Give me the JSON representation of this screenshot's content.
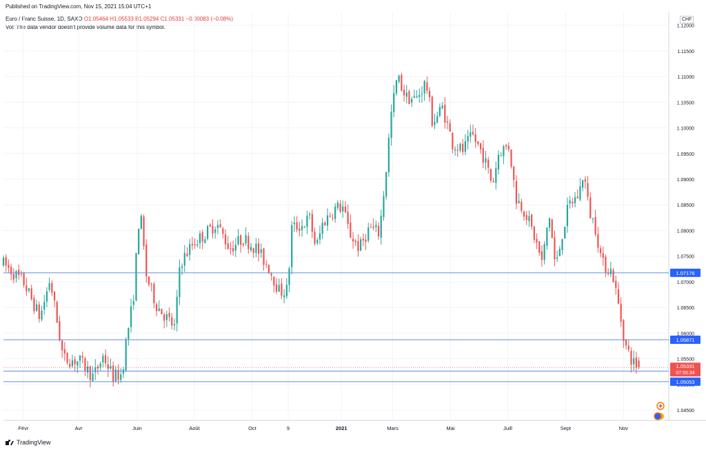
{
  "header": {
    "published": "Published on TradingView.com, Nov 15, 2021 15:04 UTC+1"
  },
  "legend": {
    "symbol": "Euro / Franc Suisse, 1D, SAXO",
    "ohlc": "O1.05464 H1.05533 B1.05294 C1.05331 −0.00083 (−0.08%)",
    "volume_note": "Vol: The data vendor doesn't provide volume data for this symbol."
  },
  "currency_badge": "CHF",
  "footer": {
    "logo_text": "TradingView"
  },
  "colors": {
    "up": "#26a69a",
    "down": "#ef5350",
    "hline": "#5b8ee6",
    "price_badge": "#ef5350",
    "label_badge": "#2962ff",
    "grid": "#f0f3fa"
  },
  "chart_data": {
    "type": "candlestick",
    "y_range": [
      1.043,
      1.1225
    ],
    "y_ticks": [
      "1.12000",
      "1.11500",
      "1.11000",
      "1.10500",
      "1.10000",
      "1.09500",
      "1.09000",
      "1.08500",
      "1.08000",
      "1.07500",
      "1.07000",
      "1.06500",
      "1.06000",
      "1.05500",
      "1.05000",
      "1.04500"
    ],
    "y_tick_values": [
      1.12,
      1.115,
      1.11,
      1.105,
      1.1,
      1.095,
      1.09,
      1.085,
      1.08,
      1.075,
      1.07,
      1.065,
      1.06,
      1.055,
      1.05,
      1.045
    ],
    "x_ticks": [
      {
        "label": "Févr",
        "x": 0.03
      },
      {
        "label": "Avr",
        "x": 0.113
      },
      {
        "label": "Juin",
        "x": 0.201
      },
      {
        "label": "Août",
        "x": 0.287
      },
      {
        "label": "Oct",
        "x": 0.374
      },
      {
        "label": "9",
        "x": 0.428
      },
      {
        "label": "2021",
        "x": 0.508
      },
      {
        "label": "Mars",
        "x": 0.585
      },
      {
        "label": "Mai",
        "x": 0.672
      },
      {
        "label": "Juill",
        "x": 0.758
      },
      {
        "label": "Sept",
        "x": 0.845
      },
      {
        "label": "Nov",
        "x": 0.932
      }
    ],
    "anchors": [
      [
        0.0,
        1.0735
      ],
      [
        0.03,
        1.07
      ],
      [
        0.055,
        1.063
      ],
      [
        0.07,
        1.0705
      ],
      [
        0.09,
        1.055
      ],
      [
        0.115,
        1.0545
      ],
      [
        0.135,
        1.0515
      ],
      [
        0.15,
        1.0555
      ],
      [
        0.165,
        1.0515
      ],
      [
        0.178,
        1.052
      ],
      [
        0.185,
        1.059
      ],
      [
        0.195,
        1.0665
      ],
      [
        0.205,
        1.0845
      ],
      [
        0.215,
        1.071
      ],
      [
        0.23,
        1.0655
      ],
      [
        0.245,
        1.063
      ],
      [
        0.258,
        1.061
      ],
      [
        0.265,
        1.0735
      ],
      [
        0.285,
        1.0775
      ],
      [
        0.305,
        1.0795
      ],
      [
        0.32,
        1.0815
      ],
      [
        0.34,
        1.0765
      ],
      [
        0.36,
        1.0785
      ],
      [
        0.38,
        1.0765
      ],
      [
        0.4,
        1.0725
      ],
      [
        0.415,
        1.068
      ],
      [
        0.428,
        1.0685
      ],
      [
        0.432,
        1.0805
      ],
      [
        0.45,
        1.081
      ],
      [
        0.46,
        1.0825
      ],
      [
        0.47,
        1.0765
      ],
      [
        0.48,
        1.0815
      ],
      [
        0.5,
        1.0845
      ],
      [
        0.51,
        1.0845
      ],
      [
        0.52,
        1.0795
      ],
      [
        0.535,
        1.0765
      ],
      [
        0.55,
        1.0805
      ],
      [
        0.565,
        1.0795
      ],
      [
        0.575,
        1.0915
      ],
      [
        0.582,
        1.102
      ],
      [
        0.592,
        1.11
      ],
      [
        0.605,
        1.106
      ],
      [
        0.62,
        1.1055
      ],
      [
        0.635,
        1.109
      ],
      [
        0.645,
        1.101
      ],
      [
        0.66,
        1.104
      ],
      [
        0.675,
        1.097
      ],
      [
        0.69,
        1.0955
      ],
      [
        0.705,
        1.0985
      ],
      [
        0.72,
        1.095
      ],
      [
        0.735,
        1.089
      ],
      [
        0.745,
        1.0955
      ],
      [
        0.76,
        1.0965
      ],
      [
        0.77,
        1.0865
      ],
      [
        0.785,
        1.0835
      ],
      [
        0.8,
        1.078
      ],
      [
        0.81,
        1.0735
      ],
      [
        0.82,
        1.0835
      ],
      [
        0.83,
        1.0725
      ],
      [
        0.84,
        1.0795
      ],
      [
        0.85,
        1.085
      ],
      [
        0.865,
        1.087
      ],
      [
        0.872,
        1.0915
      ],
      [
        0.88,
        1.084
      ],
      [
        0.89,
        1.0805
      ],
      [
        0.9,
        1.0735
      ],
      [
        0.915,
        1.072
      ],
      [
        0.925,
        1.065
      ],
      [
        0.935,
        1.0575
      ],
      [
        0.945,
        1.0545
      ],
      [
        0.955,
        1.0533
      ]
    ],
    "last_bar": {
      "open": 1.05464,
      "high": 1.05533,
      "low": 1.05294,
      "close": 1.05331
    },
    "horizontal_levels": [
      {
        "label": "1.07176",
        "value": 1.07176
      },
      {
        "label": "1.05871",
        "value": 1.05871
      },
      {
        "label": "1.05261",
        "value": 1.05261
      },
      {
        "label": "1.05053",
        "value": 1.05053
      }
    ],
    "current_price": {
      "label": "1.05331",
      "value": 1.05331,
      "countdown": "07:55:34"
    }
  }
}
